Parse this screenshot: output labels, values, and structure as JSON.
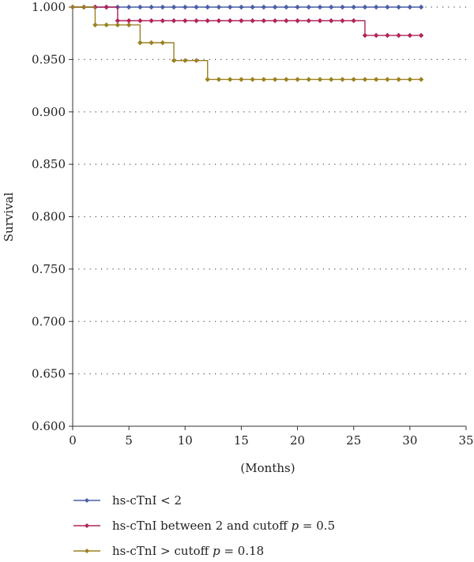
{
  "chart_data": {
    "type": "line",
    "title": "",
    "xlabel": "(Months)",
    "ylabel": "Survival",
    "xlim": [
      0,
      35
    ],
    "ylim": [
      0.6,
      1.0
    ],
    "x_ticks": [
      0,
      5,
      10,
      15,
      20,
      25,
      30,
      35
    ],
    "x_tick_labels": [
      "0",
      "5",
      "10",
      "15",
      "20",
      "25",
      "30",
      "35"
    ],
    "y_ticks": [
      0.6,
      0.65,
      0.7,
      0.75,
      0.8,
      0.85,
      0.9,
      0.95,
      1.0
    ],
    "y_tick_labels": [
      "0.600",
      "0.650",
      "0.700",
      "0.750",
      "0.800",
      "0.850",
      "0.900",
      "0.950",
      "1.000"
    ],
    "grid": "horizontal dotted",
    "legend_position": "bottom",
    "series": [
      {
        "name": "hs-cTnI < 2",
        "name_suffix": "",
        "p_value": "",
        "color": "#4a5fa8",
        "x": [
          0,
          1,
          2,
          3,
          4,
          5,
          6,
          7,
          8,
          9,
          10,
          11,
          12,
          13,
          14,
          15,
          16,
          17,
          18,
          19,
          20,
          21,
          22,
          23,
          24,
          25,
          26,
          27,
          28,
          29,
          30,
          31
        ],
        "y": [
          1,
          1,
          1,
          1,
          1,
          1,
          1,
          1,
          1,
          1,
          1,
          1,
          1,
          1,
          1,
          1,
          1,
          1,
          1,
          1,
          1,
          1,
          1,
          1,
          1,
          1,
          1,
          1,
          1,
          1,
          1,
          1
        ]
      },
      {
        "name": "hs-cTnI between 2 and cutoff",
        "name_suffix": " = 0.5",
        "p_value": "0.5",
        "color": "#b0245a",
        "x": [
          0,
          1,
          2,
          3,
          4,
          5,
          6,
          7,
          8,
          9,
          10,
          11,
          12,
          13,
          14,
          15,
          16,
          17,
          18,
          19,
          20,
          21,
          22,
          23,
          24,
          25,
          26,
          27,
          28,
          29,
          30,
          31
        ],
        "y": [
          1,
          1,
          1,
          1,
          0.987,
          0.987,
          0.987,
          0.987,
          0.987,
          0.987,
          0.987,
          0.987,
          0.987,
          0.987,
          0.987,
          0.987,
          0.987,
          0.987,
          0.987,
          0.987,
          0.987,
          0.987,
          0.987,
          0.987,
          0.987,
          0.987,
          0.973,
          0.973,
          0.973,
          0.973,
          0.973,
          0.973
        ]
      },
      {
        "name": "hs-cTnI > cutoff",
        "name_suffix": " = 0.18",
        "p_value": "0.18",
        "color": "#9a8020",
        "x": [
          0,
          1,
          2,
          3,
          4,
          5,
          6,
          7,
          8,
          9,
          10,
          11,
          12,
          13,
          14,
          15,
          16,
          17,
          18,
          19,
          20,
          21,
          22,
          23,
          24,
          25,
          26,
          27,
          28,
          29,
          30,
          31
        ],
        "y": [
          1,
          1,
          0.983,
          0.983,
          0.983,
          0.983,
          0.966,
          0.966,
          0.966,
          0.949,
          0.949,
          0.949,
          0.931,
          0.931,
          0.931,
          0.931,
          0.931,
          0.931,
          0.931,
          0.931,
          0.931,
          0.931,
          0.931,
          0.931,
          0.931,
          0.931,
          0.931,
          0.931,
          0.931,
          0.931,
          0.931,
          0.931
        ]
      }
    ]
  }
}
